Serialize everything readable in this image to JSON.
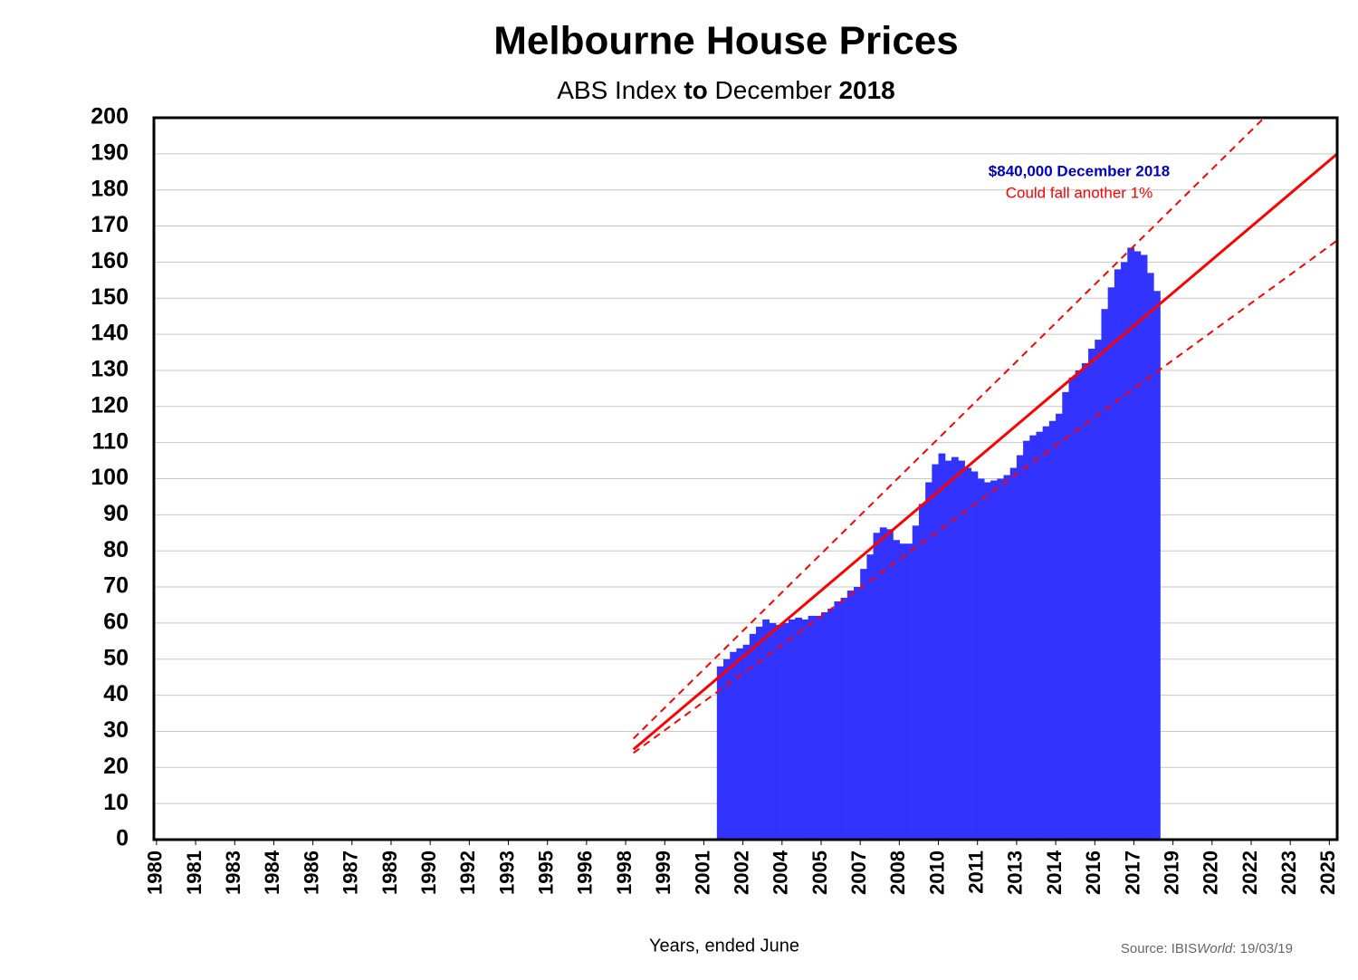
{
  "chart_data": {
    "type": "bar",
    "title": "Melbourne House Prices",
    "subtitle_parts": [
      {
        "text": "ABS Index ",
        "bold": false
      },
      {
        "text": "to",
        "bold": true
      },
      {
        "text": " December ",
        "bold": false
      },
      {
        "text": "2018",
        "bold": true
      }
    ],
    "x_label": "Years, ended June",
    "source_parts": [
      {
        "text": "Source: IBIS",
        "italic": false
      },
      {
        "text": "World",
        "italic": true
      },
      {
        "text": ":  19/03/19",
        "italic": false
      }
    ],
    "annotations": [
      {
        "text": "$840,000 December 2018",
        "color": "#0000c0"
      },
      {
        "text": "Could fall another 1%",
        "color": "#ff0000"
      }
    ],
    "color": "#3333ff",
    "x": [
      2001.625,
      2001.875,
      2002.125,
      2002.375,
      2002.625,
      2002.875,
      2003.125,
      2003.375,
      2003.625,
      2003.875,
      2004.125,
      2004.375,
      2004.625,
      2004.875,
      2005.125,
      2005.375,
      2005.625,
      2005.875,
      2006.125,
      2006.375,
      2006.625,
      2006.875,
      2007.125,
      2007.375,
      2007.625,
      2007.875,
      2008.125,
      2008.375,
      2008.625,
      2008.875,
      2009.125,
      2009.375,
      2009.625,
      2009.875,
      2010.125,
      2010.375,
      2010.625,
      2010.875,
      2011.125,
      2011.375,
      2011.625,
      2011.875,
      2012.125,
      2012.375,
      2012.625,
      2012.875,
      2013.125,
      2013.375,
      2013.625,
      2013.875,
      2014.125,
      2014.375,
      2014.625,
      2014.875,
      2015.125,
      2015.375,
      2015.625,
      2015.875,
      2016.125,
      2016.375,
      2016.625,
      2016.875,
      2017.125,
      2017.375,
      2017.625,
      2017.875,
      2018.125,
      2018.375
    ],
    "values": [
      48,
      50,
      52,
      53,
      54,
      57,
      59,
      61,
      60,
      59.5,
      60,
      61,
      61.5,
      61,
      62,
      62,
      63,
      64,
      66,
      67,
      69,
      70,
      75,
      79,
      85,
      86.5,
      86,
      83,
      82,
      82,
      87,
      93,
      99,
      104,
      107,
      105,
      106,
      105,
      103,
      102,
      100,
      99,
      99.5,
      100,
      101,
      103,
      106.5,
      110.5,
      112,
      113,
      114.5,
      116,
      118,
      124,
      128,
      130,
      132,
      136,
      138.5,
      147,
      153,
      158,
      160,
      164,
      163,
      162,
      157,
      152
    ],
    "bar_width": 0.25,
    "trend_color": "#ff0000",
    "trend_lines": [
      {
        "x": [
          1998.3,
          2025.3
        ],
        "values": [
          25,
          190
        ],
        "dashed": false
      },
      {
        "x": [
          1998.3,
          2022.5
        ],
        "values": [
          28,
          200
        ],
        "dashed": true
      },
      {
        "x": [
          1998.3,
          2025.3
        ],
        "values": [
          24,
          166
        ],
        "dashed": true
      }
    ],
    "xlim": [
      1979.9,
      2025.3
    ],
    "xticks": [
      1980,
      {
        "value": 1981.5,
        "label": "1981"
      },
      1983,
      {
        "value": 1984.5,
        "label": "1984"
      },
      1986,
      {
        "value": 1987.5,
        "label": "1987"
      },
      1989,
      {
        "value": 1990.5,
        "label": "1990"
      },
      1992,
      {
        "value": 1993.5,
        "label": "1993"
      },
      1995,
      {
        "value": 1996.5,
        "label": "1996"
      },
      1998,
      {
        "value": 1999.5,
        "label": "1999"
      },
      2001,
      {
        "value": 2002.5,
        "label": "2002"
      },
      2004,
      {
        "value": 2005.5,
        "label": "2005"
      },
      2007,
      {
        "value": 2008.5,
        "label": "2008"
      },
      2010,
      {
        "value": 2011.5,
        "label": "2011"
      },
      2013,
      {
        "value": 2014.5,
        "label": "2014"
      },
      2016,
      {
        "value": 2017.5,
        "label": "2017"
      },
      2019,
      {
        "value": 2020.5,
        "label": "2020"
      },
      2022,
      {
        "value": 2023.5,
        "label": "2023"
      },
      2025
    ],
    "ylim": [
      0,
      200
    ],
    "yticks": [
      0,
      10,
      20,
      30,
      40,
      50,
      60,
      70,
      80,
      90,
      100,
      110,
      120,
      130,
      140,
      150,
      160,
      170,
      180,
      190,
      200
    ],
    "grid": true
  }
}
